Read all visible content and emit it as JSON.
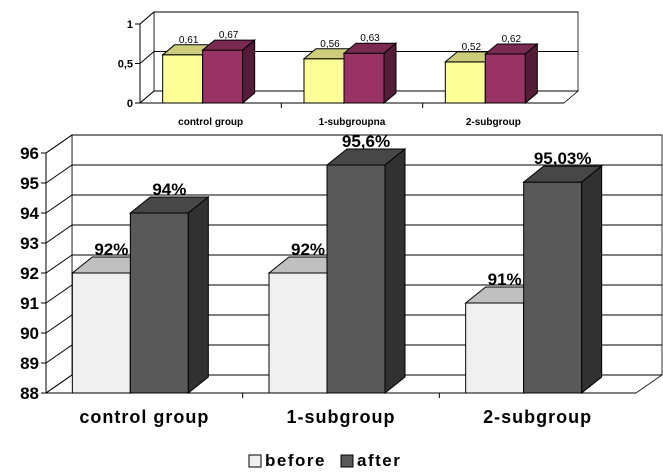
{
  "chart_data": [
    {
      "type": "bar",
      "categories": [
        "control group",
        "1-subgroupna",
        "2-subgroup"
      ],
      "series": [
        {
          "name": "",
          "values": [
            0.61,
            0.56,
            0.52
          ],
          "labels": [
            "0,61",
            "0,56",
            "0,52"
          ],
          "color": "#ffff99"
        },
        {
          "name": "",
          "values": [
            0.67,
            0.63,
            0.62
          ],
          "labels": [
            "0,67",
            "0,63",
            "0,62"
          ],
          "color": "#993366"
        }
      ],
      "yticks": [
        "0",
        "0,5",
        "1"
      ],
      "ylim": [
        0,
        1
      ],
      "grid": true,
      "style": "3d"
    },
    {
      "type": "bar",
      "categories": [
        "control group",
        "1-subgroup",
        "2-subgroup"
      ],
      "series": [
        {
          "name": "before",
          "values": [
            92,
            92,
            91
          ],
          "labels": [
            "92%",
            "92%",
            "91%"
          ],
          "color": "#f0f0f0"
        },
        {
          "name": "after",
          "values": [
            94,
            95.6,
            95.03
          ],
          "labels": [
            "94%",
            "95,6%",
            "95,03%"
          ],
          "color": "#595959"
        }
      ],
      "yticks": [
        "88",
        "89",
        "90",
        "91",
        "92",
        "93",
        "94",
        "95",
        "96"
      ],
      "ylim": [
        88,
        96
      ],
      "grid": true,
      "legend_position": "bottom",
      "style": "3d"
    }
  ]
}
